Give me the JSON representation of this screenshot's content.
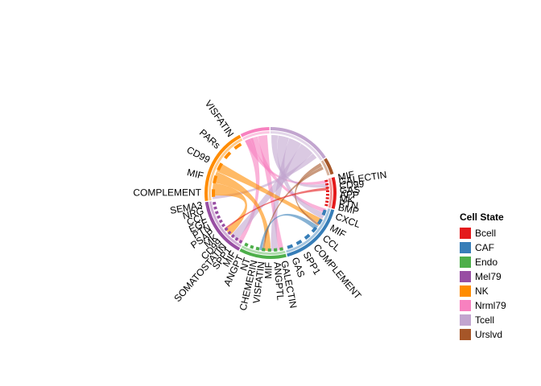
{
  "legend": {
    "title": "Cell State",
    "items": [
      {
        "label": "Bcell",
        "color": "#E41A1C"
      },
      {
        "label": "CAF",
        "color": "#377EB8"
      },
      {
        "label": "Endo",
        "color": "#4DAF4A"
      },
      {
        "label": "Mel79",
        "color": "#984EA3"
      },
      {
        "label": "NK",
        "color": "#FF8C00"
      },
      {
        "label": "Nrml79",
        "color": "#F781BF"
      },
      {
        "label": "Tcell",
        "color": "#C2A5CF"
      },
      {
        "label": "Urslvd",
        "color": "#A65628"
      }
    ]
  },
  "sectors": [
    {
      "group": "Bcell",
      "start": 76,
      "end": 104,
      "pathways": [
        "MIF",
        "GALECTIN",
        "CD99",
        "GAS",
        "APP",
        "MK",
        "PTN",
        "BMP"
      ]
    },
    {
      "group": "CAF",
      "start": 105,
      "end": 165,
      "pathways": [
        "CXCL",
        "MIF",
        "CCL",
        "COMPLEMENT",
        "SPP1",
        "GAS"
      ]
    },
    {
      "group": "Endo",
      "start": 166,
      "end": 208,
      "pathways": [
        "GALECTIN",
        "ANGPTL",
        "MIF",
        "VISFATIN",
        "CHEMERIN",
        "NT",
        "ANGPT"
      ]
    },
    {
      "group": "Mel79",
      "start": 209,
      "end": 262,
      "pathways": [
        "MIF",
        "SPP1",
        "SOMATOSTATIN",
        "CD99",
        "MK",
        "PSAP",
        "PTN",
        "EGF",
        "CCL",
        "NRG",
        "SEMA3"
      ]
    },
    {
      "group": "NK",
      "start": 263,
      "end": 332,
      "pathways": [
        "COMPLEMENT",
        "MIF",
        "CD99",
        "PARs",
        "VISFATIN"
      ]
    },
    {
      "group": "Nrml79",
      "start": 333,
      "end": 359,
      "pathways": []
    },
    {
      "group": "Tcell",
      "start": 0,
      "end": 57,
      "pathways": []
    },
    {
      "group": "Urslvd",
      "start": 58,
      "end": 73,
      "pathways": []
    }
  ],
  "chords": [
    {
      "from": "Nrml79",
      "to": "Bcell",
      "value": 6
    },
    {
      "from": "Nrml79",
      "to": "CAF",
      "value": 8
    },
    {
      "from": "Nrml79",
      "to": "Endo",
      "value": 10
    },
    {
      "from": "Nrml79",
      "to": "Mel79",
      "value": 9
    },
    {
      "from": "Tcell",
      "to": "Bcell",
      "value": 7
    },
    {
      "from": "Tcell",
      "to": "CAF",
      "value": 12
    },
    {
      "from": "Tcell",
      "to": "Endo",
      "value": 14
    },
    {
      "from": "Tcell",
      "to": "Mel79",
      "value": 16
    },
    {
      "from": "Tcell",
      "to": "NK",
      "value": 6
    },
    {
      "from": "NK",
      "to": "Mel79",
      "value": 14
    },
    {
      "from": "NK",
      "to": "Endo",
      "value": 12
    },
    {
      "from": "NK",
      "to": "CAF",
      "value": 10
    },
    {
      "from": "Urslvd",
      "to": "CAF",
      "value": 4
    },
    {
      "from": "Urslvd",
      "to": "Endo",
      "value": 3
    },
    {
      "from": "Bcell",
      "to": "Mel79",
      "value": 3
    },
    {
      "from": "CAF",
      "to": "Endo",
      "value": 5
    }
  ]
}
